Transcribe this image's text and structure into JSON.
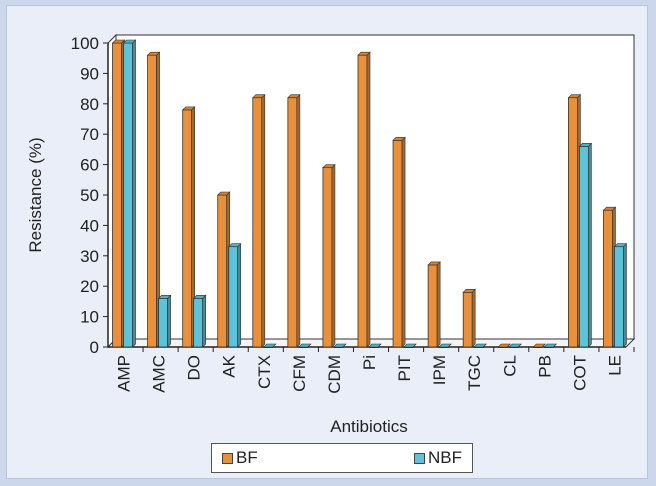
{
  "chart_data": {
    "type": "bar",
    "xlabel": "Antibiotics",
    "ylabel": "Resistance (%)",
    "ylim": [
      0,
      100
    ],
    "yticks": [
      0,
      10,
      20,
      30,
      40,
      50,
      60,
      70,
      80,
      90,
      100
    ],
    "categories": [
      "AMP",
      "AMC",
      "DO",
      "AK",
      "CTX",
      "CFM",
      "CDM",
      "Pi",
      "PIT",
      "IPM",
      "TGC",
      "CL",
      "PB",
      "COT",
      "LE"
    ],
    "series": [
      {
        "name": "BF",
        "color": "#e8913a",
        "values": [
          100,
          96,
          78,
          50,
          82,
          82,
          59,
          96,
          68,
          27,
          18,
          0,
          0,
          82,
          45
        ]
      },
      {
        "name": "NBF",
        "color": "#5cc3d8",
        "values": [
          100,
          16,
          16,
          33,
          0,
          0,
          0,
          0,
          0,
          0,
          0,
          0,
          0,
          66,
          33
        ]
      }
    ],
    "grid": false,
    "legend_position": "bottom"
  }
}
